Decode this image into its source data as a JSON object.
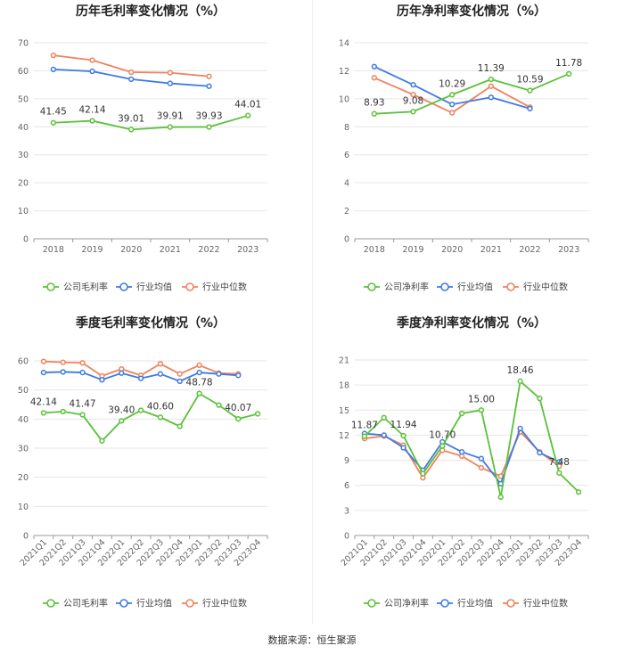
{
  "source_text": "数据来源：恒生聚源",
  "colors": {
    "company": "#5cc13a",
    "industry_avg": "#3f7be0",
    "industry_median": "#f0825c",
    "grid": "#e6e6e6",
    "axis": "#999999",
    "text": "#666666",
    "title": "#222222"
  },
  "chart_data": [
    {
      "type": "line",
      "title": "历年毛利率变化情况（%）",
      "categories": [
        "2018",
        "2019",
        "2020",
        "2021",
        "2022",
        "2023"
      ],
      "ylim": [
        0,
        70
      ],
      "yticks": [
        0,
        10,
        20,
        30,
        40,
        50,
        60,
        70
      ],
      "xlabel_rotate": false,
      "series": [
        {
          "name": "公司毛利率",
          "color": "#5cc13a",
          "values": [
            41.45,
            42.14,
            39.01,
            39.91,
            39.93,
            44.01
          ],
          "labels": [
            "41.45",
            "42.14",
            "39.01",
            "39.91",
            "39.93",
            "44.01"
          ]
        },
        {
          "name": "行业均值",
          "color": "#3f7be0",
          "values": [
            60.5,
            59.8,
            57.0,
            55.5,
            54.5,
            null
          ]
        },
        {
          "name": "行业中位数",
          "color": "#f0825c",
          "values": [
            65.5,
            63.8,
            59.5,
            59.3,
            58.0,
            null
          ]
        }
      ]
    },
    {
      "type": "line",
      "title": "历年净利率变化情况（%）",
      "categories": [
        "2018",
        "2019",
        "2020",
        "2021",
        "2022",
        "2023"
      ],
      "ylim": [
        0,
        14
      ],
      "yticks": [
        0,
        2,
        4,
        6,
        8,
        10,
        12,
        14
      ],
      "xlabel_rotate": false,
      "series": [
        {
          "name": "公司净利率",
          "color": "#5cc13a",
          "values": [
            8.93,
            9.08,
            10.29,
            11.39,
            10.59,
            11.78
          ],
          "labels": [
            "8.93",
            "9.08",
            "10.29",
            "11.39",
            "10.59",
            "11.78"
          ]
        },
        {
          "name": "行业均值",
          "color": "#3f7be0",
          "values": [
            12.3,
            11.0,
            9.6,
            10.1,
            9.3,
            null
          ]
        },
        {
          "name": "行业中位数",
          "color": "#f0825c",
          "values": [
            11.5,
            10.3,
            9.0,
            10.9,
            9.4,
            null
          ]
        }
      ]
    },
    {
      "type": "line",
      "title": "季度毛利率变化情况（%）",
      "categories": [
        "2021Q1",
        "2021Q2",
        "2021Q3",
        "2021Q4",
        "2022Q1",
        "2022Q2",
        "2022Q3",
        "2022Q4",
        "2023Q1",
        "2023Q2",
        "2023Q3",
        "2023Q4"
      ],
      "ylim": [
        0,
        60
      ],
      "yticks": [
        0,
        10,
        20,
        30,
        40,
        50,
        60
      ],
      "xlabel_rotate": true,
      "series": [
        {
          "name": "公司毛利率",
          "color": "#5cc13a",
          "values": [
            42.14,
            42.6,
            41.47,
            32.5,
            39.4,
            43.0,
            40.6,
            37.5,
            48.78,
            44.8,
            40.07,
            41.8
          ],
          "labels": [
            "42.14",
            "",
            "41.47",
            "",
            "39.40",
            "",
            "40.60",
            "",
            "48.78",
            "",
            "40.07",
            ""
          ]
        },
        {
          "name": "行业均值",
          "color": "#3f7be0",
          "values": [
            56.0,
            56.2,
            56.0,
            53.5,
            55.8,
            54.0,
            55.5,
            53.0,
            56.0,
            55.5,
            55.0,
            null
          ]
        },
        {
          "name": "行业中位数",
          "color": "#f0825c",
          "values": [
            59.8,
            59.5,
            59.3,
            54.8,
            57.2,
            55.0,
            59.0,
            55.5,
            58.5,
            55.8,
            55.5,
            null
          ]
        }
      ]
    },
    {
      "type": "line",
      "title": "季度净利率变化情况（%）",
      "categories": [
        "2021Q1",
        "2021Q2",
        "2021Q3",
        "2021Q4",
        "2022Q1",
        "2022Q2",
        "2022Q3",
        "2022Q4",
        "2023Q1",
        "2023Q2",
        "2023Q3",
        "2023Q4"
      ],
      "ylim": [
        0,
        21
      ],
      "yticks": [
        0,
        3,
        6,
        9,
        12,
        15,
        18,
        21
      ],
      "xlabel_rotate": true,
      "series": [
        {
          "name": "公司净利率",
          "color": "#5cc13a",
          "values": [
            11.87,
            14.1,
            11.94,
            7.4,
            10.7,
            14.6,
            15.0,
            4.6,
            18.46,
            16.4,
            7.48,
            5.2
          ],
          "labels": [
            "11.87",
            "",
            "11.94",
            "",
            "10.70",
            "",
            "15.00",
            "",
            "18.46",
            "",
            "7.48",
            ""
          ]
        },
        {
          "name": "行业均值",
          "color": "#3f7be0",
          "values": [
            12.2,
            12.0,
            10.5,
            7.8,
            11.2,
            10.0,
            9.2,
            6.2,
            12.8,
            9.9,
            8.8,
            null
          ]
        },
        {
          "name": "行业中位数",
          "color": "#f0825c",
          "values": [
            11.6,
            11.9,
            10.8,
            6.9,
            10.2,
            9.5,
            8.1,
            7.1,
            12.4,
            10.0,
            8.3,
            null
          ]
        }
      ]
    }
  ]
}
